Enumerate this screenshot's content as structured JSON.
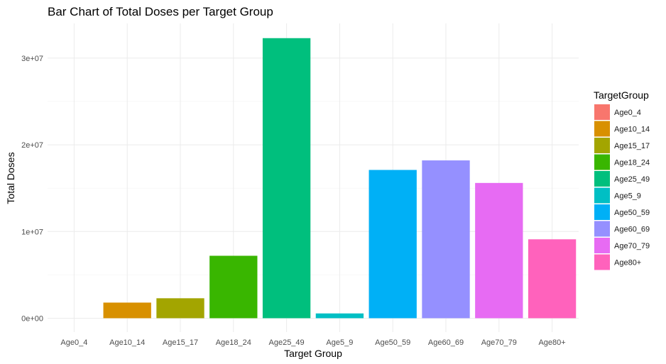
{
  "chart_data": {
    "type": "bar",
    "title": "Bar Chart of Total Doses per Target Group",
    "xlabel": "Target Group",
    "ylabel": "Total Doses",
    "categories": [
      "Age0_4",
      "Age10_14",
      "Age15_17",
      "Age18_24",
      "Age25_49",
      "Age5_9",
      "Age50_59",
      "Age60_69",
      "Age70_79",
      "Age80+"
    ],
    "values": [
      0,
      1800000,
      2300000,
      7200000,
      32300000,
      550000,
      17100000,
      18200000,
      15600000,
      9100000
    ],
    "colors": [
      "#F8766D",
      "#D89000",
      "#A3A500",
      "#39B600",
      "#00BF7D",
      "#00BFC4",
      "#00B0F6",
      "#9590FF",
      "#E76BF3",
      "#FF62BC"
    ],
    "ylim": [
      -1600000,
      34000000
    ],
    "yticks": [
      0,
      10000000,
      20000000,
      30000000
    ],
    "ytick_labels": [
      "0e+00",
      "1e+07",
      "2e+07",
      "3e+07"
    ],
    "grid": true,
    "legend": {
      "title": "TargetGroup",
      "position": "right"
    }
  }
}
